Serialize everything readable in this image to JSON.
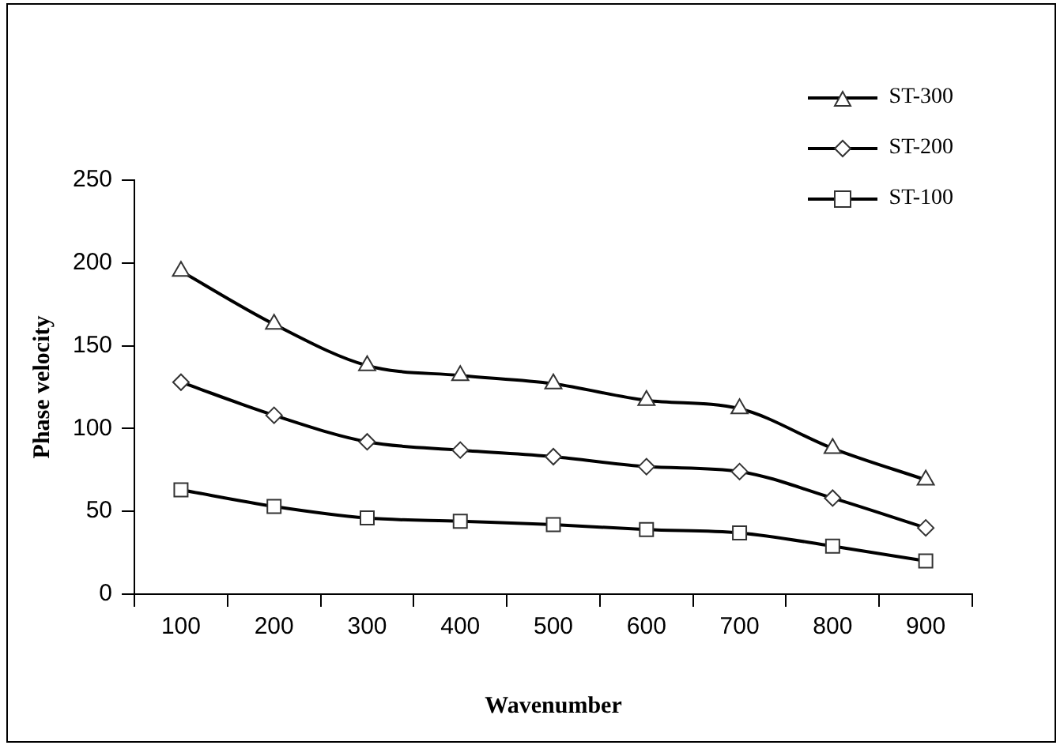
{
  "chart_data": {
    "type": "line",
    "xlabel": "Wavenumber",
    "ylabel": "Phase velocity",
    "categories": [
      "100",
      "200",
      "300",
      "400",
      "500",
      "600",
      "700",
      "800",
      "900"
    ],
    "series": [
      {
        "name": "ST-300",
        "color": "#000000",
        "marker": "triangle",
        "values": [
          195,
          163,
          138,
          132,
          127,
          117,
          112,
          88,
          69
        ]
      },
      {
        "name": "ST-200",
        "color": "#000000",
        "marker": "diamond",
        "values": [
          128,
          108,
          92,
          87,
          83,
          77,
          74,
          58,
          40
        ]
      },
      {
        "name": "ST-100",
        "color": "#000000",
        "marker": "square",
        "values": [
          63,
          53,
          46,
          44,
          42,
          39,
          37,
          29,
          20
        ]
      }
    ],
    "ylim": [
      0,
      250
    ],
    "yticks": [
      0,
      50,
      100,
      150,
      200,
      250
    ],
    "grid": false,
    "legend": "top right",
    "line_style": "solid"
  }
}
